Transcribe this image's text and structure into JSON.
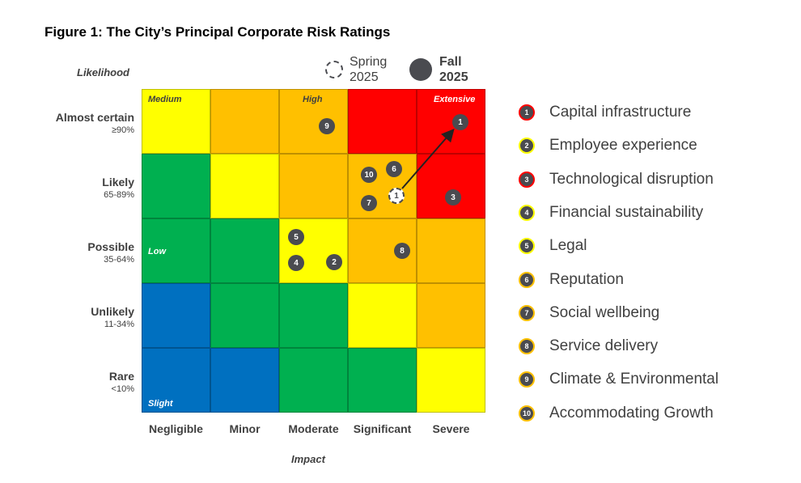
{
  "title": "Figure 1: The City’s Principal Corporate Risk Ratings",
  "y_axis_label": "Likelihood",
  "x_axis_label": "Impact",
  "key": {
    "spring": [
      "Spring",
      "2025"
    ],
    "fall": [
      "Fall",
      "2025"
    ]
  },
  "likelihood": [
    {
      "name": "Almost certain",
      "range": "≥90%"
    },
    {
      "name": "Likely",
      "range": "65-89%"
    },
    {
      "name": "Possible",
      "range": "35-64%"
    },
    {
      "name": "Unlikely",
      "range": "11-34%"
    },
    {
      "name": "Rare",
      "range": "<10%"
    }
  ],
  "impact": [
    "Negligible",
    "Minor",
    "Moderate",
    "Significant",
    "Severe"
  ],
  "colors": {
    "blue": "#0070c0",
    "green": "#00b050",
    "yellow": "#ffff00",
    "orange": "#ffc000",
    "red": "#ff0000",
    "marker": "#4a4b50"
  },
  "matrix": [
    [
      "yellow",
      "orange",
      "orange",
      "red",
      "red"
    ],
    [
      "green",
      "yellow",
      "orange",
      "orange",
      "red"
    ],
    [
      "green",
      "green",
      "yellow",
      "orange",
      "orange"
    ],
    [
      "blue",
      "green",
      "green",
      "yellow",
      "orange"
    ],
    [
      "blue",
      "blue",
      "green",
      "green",
      "yellow"
    ]
  ],
  "zones": {
    "medium": "Medium",
    "high": "High",
    "extensive": "Extensive",
    "low": "Low",
    "slight": "Slight"
  },
  "risks": [
    {
      "id": "1",
      "name": "Capital infrastructure",
      "rating": "red",
      "spring": {
        "likelihood": "Likely",
        "impact": "Significant"
      },
      "fall": {
        "likelihood": "Almost certain",
        "impact": "Severe"
      }
    },
    {
      "id": "2",
      "name": "Employee experience",
      "rating": "yellow",
      "fall": {
        "likelihood": "Possible",
        "impact": "Moderate"
      }
    },
    {
      "id": "3",
      "name": "Technological disruption",
      "rating": "red",
      "fall": {
        "likelihood": "Likely",
        "impact": "Severe"
      }
    },
    {
      "id": "4",
      "name": "Financial sustainability",
      "rating": "yellow",
      "fall": {
        "likelihood": "Possible",
        "impact": "Moderate"
      }
    },
    {
      "id": "5",
      "name": "Legal",
      "rating": "yellow",
      "fall": {
        "likelihood": "Possible",
        "impact": "Moderate"
      }
    },
    {
      "id": "6",
      "name": "Reputation",
      "rating": "orange",
      "fall": {
        "likelihood": "Likely",
        "impact": "Significant"
      }
    },
    {
      "id": "7",
      "name": "Social wellbeing",
      "rating": "orange",
      "fall": {
        "likelihood": "Likely",
        "impact": "Significant"
      }
    },
    {
      "id": "8",
      "name": "Service delivery",
      "rating": "orange",
      "fall": {
        "likelihood": "Possible",
        "impact": "Significant"
      }
    },
    {
      "id": "9",
      "name": "Climate & Environmental",
      "rating": "orange",
      "fall": {
        "likelihood": "Almost certain",
        "impact": "Moderate"
      }
    },
    {
      "id": "10",
      "name": "Accommodating Growth",
      "rating": "orange",
      "fall": {
        "likelihood": "Likely",
        "impact": "Significant"
      }
    }
  ]
}
